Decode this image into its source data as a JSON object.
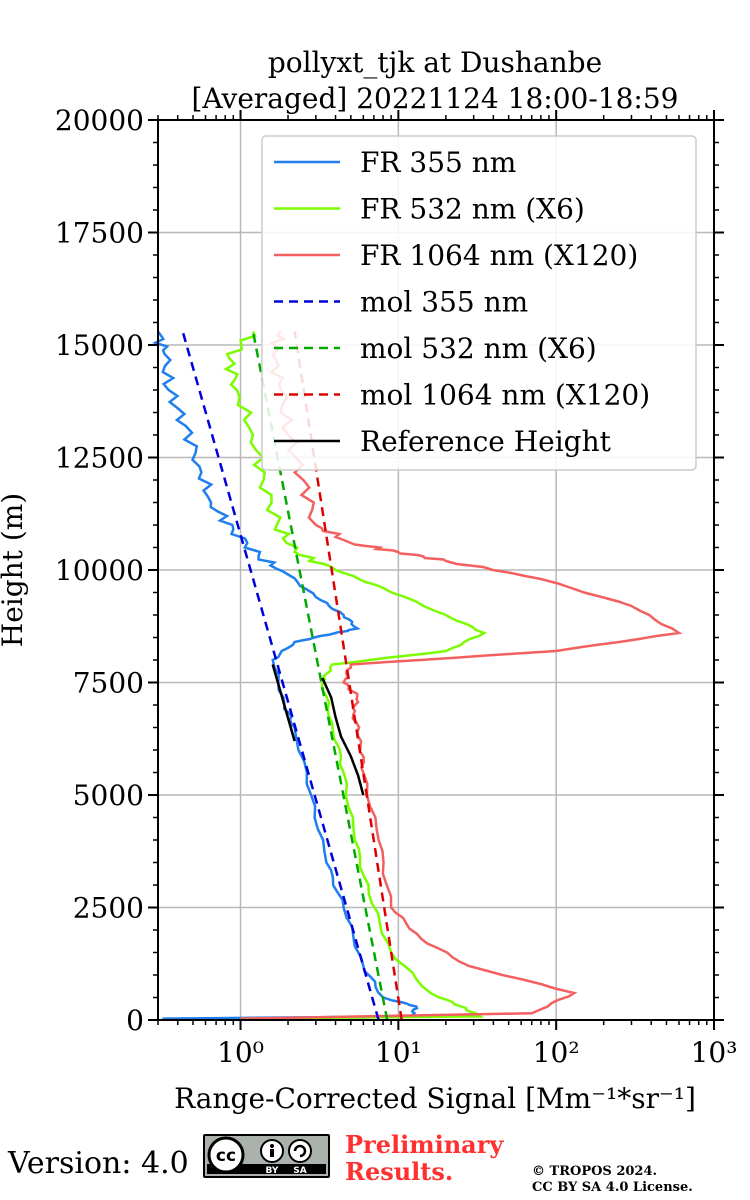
{
  "chart_data": {
    "type": "line",
    "title_line1": "pollyxt_tjk at Dushanbe",
    "title_line2": "[Averaged] 20221124 18:00-18:59",
    "xlabel": "Range-Corrected Signal [Mm⁻¹*sr⁻¹]",
    "ylabel": "Height (m)",
    "xscale": "log",
    "xlim": [
      0.3,
      1000
    ],
    "ylim": [
      0,
      20000
    ],
    "x_ticks": [
      1,
      10,
      100,
      1000
    ],
    "x_tick_labels": [
      "10⁰",
      "10¹",
      "10²",
      "10³"
    ],
    "y_ticks": [
      0,
      2500,
      5000,
      7500,
      10000,
      12500,
      15000,
      17500,
      20000
    ],
    "y_tick_labels": [
      "0",
      "2500",
      "5000",
      "7500",
      "10000",
      "12500",
      "15000",
      "17500",
      "20000"
    ],
    "grid": true,
    "legend_position": "top-right",
    "series": [
      {
        "name": "FR 355 nm",
        "color": "#1f7fef",
        "dash": "solid",
        "points": [
          [
            0.32,
            30
          ],
          [
            12,
            80
          ],
          [
            13,
            300
          ],
          [
            8,
            500
          ],
          [
            6,
            1200
          ],
          [
            4.5,
            2500
          ],
          [
            3.5,
            3500
          ],
          [
            2.8,
            5000
          ],
          [
            2.2,
            6500
          ],
          [
            1.9,
            7000
          ],
          [
            1.6,
            8000
          ],
          [
            2.2,
            8400
          ],
          [
            4,
            8600
          ],
          [
            5.5,
            8700
          ],
          [
            4.5,
            9000
          ],
          [
            3,
            9400
          ],
          [
            2,
            9900
          ],
          [
            1.3,
            10300
          ],
          [
            0.9,
            10900
          ],
          [
            0.65,
            11500
          ],
          [
            0.55,
            12300
          ],
          [
            0.45,
            13200
          ],
          [
            0.35,
            14000
          ],
          [
            0.33,
            14800
          ],
          [
            0.3,
            15300
          ]
        ]
      },
      {
        "name": "FR 532 nm (X6)",
        "color": "#7cfc00",
        "dash": "solid",
        "points": [
          [
            1,
            30
          ],
          [
            33,
            80
          ],
          [
            25,
            300
          ],
          [
            16,
            600
          ],
          [
            9,
            1500
          ],
          [
            6.5,
            2800
          ],
          [
            5.3,
            4000
          ],
          [
            4.5,
            5500
          ],
          [
            3.8,
            6600
          ],
          [
            3.3,
            7500
          ],
          [
            3.8,
            7900
          ],
          [
            20,
            8200
          ],
          [
            35,
            8600
          ],
          [
            20,
            9000
          ],
          [
            8,
            9600
          ],
          [
            4,
            10000
          ],
          [
            2.2,
            10400
          ],
          [
            1.7,
            11000
          ],
          [
            1.4,
            12000
          ],
          [
            1.2,
            13000
          ],
          [
            0.95,
            14000
          ],
          [
            0.85,
            14700
          ],
          [
            1.2,
            15300
          ]
        ]
      },
      {
        "name": "FR 1064 nm (X120)",
        "color": "#f26060",
        "dash": "solid",
        "points": [
          [
            1,
            30
          ],
          [
            70,
            150
          ],
          [
            130,
            600
          ],
          [
            28,
            1200
          ],
          [
            14,
            1800
          ],
          [
            9,
            2500
          ],
          [
            7.5,
            4000
          ],
          [
            6,
            5500
          ],
          [
            5.8,
            6200
          ],
          [
            5.2,
            6800
          ],
          [
            5.5,
            7200
          ],
          [
            4.5,
            7500
          ],
          [
            5,
            7900
          ],
          [
            100,
            8200
          ],
          [
            600,
            8600
          ],
          [
            300,
            9200
          ],
          [
            80,
            9800
          ],
          [
            20,
            10200
          ],
          [
            10,
            10400
          ],
          [
            5,
            10600
          ],
          [
            3,
            11000
          ],
          [
            2.5,
            12000
          ],
          [
            2,
            13000
          ],
          [
            1.8,
            14000
          ],
          [
            1.6,
            14800
          ],
          [
            1.8,
            15300
          ]
        ]
      },
      {
        "name": "mol 355 nm",
        "color": "#0000dd",
        "dash": "dashed",
        "points": [
          [
            7.5,
            0
          ],
          [
            0.43,
            15300
          ]
        ]
      },
      {
        "name": "mol 532 nm (X6)",
        "color": "#00aa00",
        "dash": "dashed",
        "points": [
          [
            8.5,
            0
          ],
          [
            1.2,
            15300
          ]
        ]
      },
      {
        "name": "mol 1064 nm (X120)",
        "color": "#dd0000",
        "dash": "dashed",
        "points": [
          [
            10.5,
            0
          ],
          [
            2.2,
            15300
          ]
        ]
      },
      {
        "name": "Reference Height",
        "color": "#000000",
        "dash": "solid",
        "points": [
          [
            1.6,
            7900
          ],
          [
            2.2,
            6200
          ]
        ],
        "points2": [
          [
            3.3,
            7600
          ],
          [
            6,
            5000
          ]
        ]
      }
    ]
  },
  "footer": {
    "version": "Version: 4.0",
    "preliminary_line1": "Preliminary",
    "preliminary_line2": "Results.",
    "copyright_line1": "© TROPOS 2024.",
    "copyright_line2": "CC BY SA 4.0 License.",
    "cc_badge_text": "cc",
    "cc_by": "BY",
    "cc_sa": "SA"
  }
}
